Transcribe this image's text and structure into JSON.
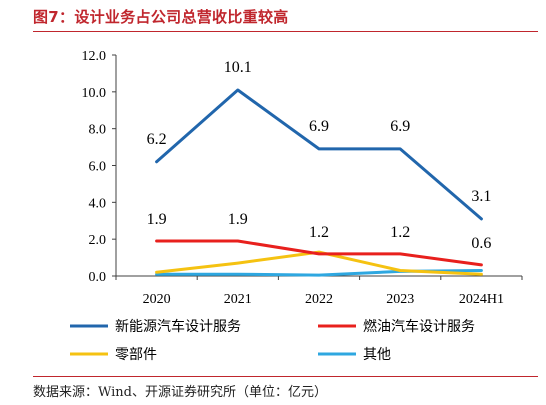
{
  "figure": {
    "title": "图7：设计业务占公司总营收比重较高",
    "source": "数据来源：Wind、开源证券研究所（单位：亿元）"
  },
  "chart_data": {
    "type": "line",
    "categories": [
      "2020",
      "2021",
      "2022",
      "2023",
      "2024H1"
    ],
    "ylim": [
      0,
      12
    ],
    "yticks": [
      "0.0",
      "2.0",
      "4.0",
      "6.0",
      "8.0",
      "10.0",
      "12.0"
    ],
    "grid": false,
    "legend_position": "bottom",
    "series": [
      {
        "name": "新能源汽车设计服务",
        "color": "#2166ac",
        "values": [
          6.2,
          10.1,
          6.9,
          6.9,
          3.1
        ],
        "labels": [
          "6.2",
          "10.1",
          "6.9",
          "6.9",
          "3.1"
        ]
      },
      {
        "name": "燃油汽车设计服务",
        "color": "#e8201d",
        "values": [
          1.9,
          1.9,
          1.2,
          1.2,
          0.6
        ],
        "labels": [
          "1.9",
          "1.9",
          "1.2",
          "1.2",
          "0.6"
        ]
      },
      {
        "name": "零部件",
        "color": "#f5c211",
        "values": [
          0.2,
          0.7,
          1.3,
          0.3,
          0.1
        ],
        "labels": []
      },
      {
        "name": "其他",
        "color": "#2ea7e0",
        "values": [
          0.1,
          0.1,
          0.05,
          0.25,
          0.3
        ],
        "labels": []
      }
    ]
  }
}
